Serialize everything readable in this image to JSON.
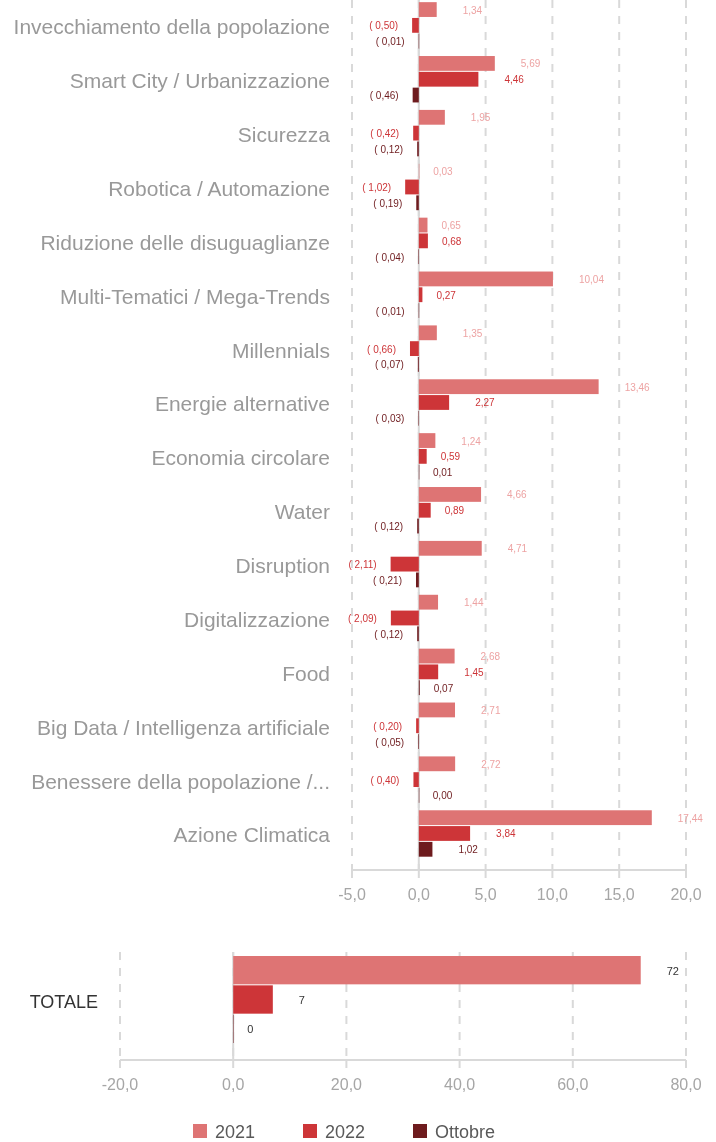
{
  "chart_data": [
    {
      "type": "bar",
      "orientation": "horizontal",
      "categories": [
        "Invecchiamento della popolazione",
        "Smart City / Urbanizzazione",
        "Sicurezza",
        "Robotica / Automazione",
        "Riduzione delle disuguaglianze",
        "Multi-Tematici / Mega-Trends",
        "Millennials",
        "Energie alternative",
        "Economia circolare",
        "Water",
        "Disruption",
        "Digitalizzazione",
        "Food",
        "Big Data / Intelligenza artificiale",
        "Benessere della popolazione /...",
        "Azione Climatica"
      ],
      "series": [
        {
          "color": "#de7474",
          "values": [
            1.34,
            5.69,
            1.95,
            0.03,
            0.65,
            10.04,
            1.35,
            13.46,
            1.24,
            4.66,
            4.71,
            1.44,
            2.68,
            2.71,
            2.72,
            17.44
          ],
          "value_labels": [
            "1,34",
            "5,69",
            "1,95",
            "0,03",
            "0,65",
            "10,04",
            "1,35",
            "13,46",
            "1,24",
            "4,66",
            "4,71",
            "1,44",
            "2,68",
            "2,71",
            "2,72",
            "17,44"
          ]
        },
        {
          "color": "#cd3538",
          "values": [
            -0.5,
            4.46,
            -0.42,
            -1.02,
            0.68,
            0.27,
            -0.66,
            2.27,
            0.59,
            0.89,
            -2.11,
            -2.09,
            1.45,
            -0.2,
            -0.4,
            3.84
          ],
          "value_labels": [
            "( 0,50)",
            "4,46",
            "( 0,42)",
            "( 1,02)",
            "0,68",
            "0,27",
            "( 0,66)",
            "2,27",
            "0,59",
            "0,89",
            "( 2,11)",
            "( 2,09)",
            "1,45",
            "( 0,20)",
            "( 0,40)",
            "3,84"
          ]
        },
        {
          "color": "#6e1b1e",
          "values": [
            -0.01,
            -0.46,
            -0.12,
            -0.19,
            -0.04,
            -0.01,
            -0.07,
            -0.03,
            0.01,
            -0.12,
            -0.21,
            -0.12,
            0.07,
            -0.05,
            0.0,
            1.02
          ],
          "value_labels": [
            "( 0,01)",
            "( 0,46)",
            "( 0,12)",
            "( 0,19)",
            "( 0,04)",
            "( 0,01)",
            "( 0,07)",
            "( 0,03)",
            "0,01",
            "( 0,12)",
            "( 0,21)",
            "( 0,12)",
            "0,07",
            "( 0,05)",
            "0,00",
            "1,02"
          ]
        }
      ],
      "xlim": [
        -5,
        20
      ],
      "xticks": [
        {
          "value": -5,
          "label": "-5,0"
        },
        {
          "value": 0,
          "label": "0,0"
        },
        {
          "value": 5,
          "label": "5,0"
        },
        {
          "value": 10,
          "label": "10,0"
        },
        {
          "value": 15,
          "label": "15,0"
        },
        {
          "value": 20,
          "label": "20,0"
        }
      ],
      "grid": "x"
    },
    {
      "type": "bar",
      "orientation": "horizontal",
      "categories": [
        "TOTALE"
      ],
      "series": [
        {
          "name": "2021",
          "color": "#de7474",
          "values": [
            72
          ],
          "value_labels": [
            "72"
          ]
        },
        {
          "name": "2022",
          "color": "#cd3538",
          "values": [
            7
          ],
          "value_labels": [
            "7"
          ]
        },
        {
          "name": "Ottobre",
          "color": "#6e1b1e",
          "values": [
            0
          ],
          "value_labels": [
            "0"
          ]
        }
      ],
      "xlim": [
        -20,
        80
      ],
      "xticks": [
        {
          "value": -20,
          "label": "-20,0"
        },
        {
          "value": 0,
          "label": "0,0"
        },
        {
          "value": 20,
          "label": "20,0"
        },
        {
          "value": 40,
          "label": "40,0"
        },
        {
          "value": 60,
          "label": "60,0"
        },
        {
          "value": 80,
          "label": "80,0"
        }
      ],
      "grid": "x",
      "legend": "bottom"
    }
  ]
}
